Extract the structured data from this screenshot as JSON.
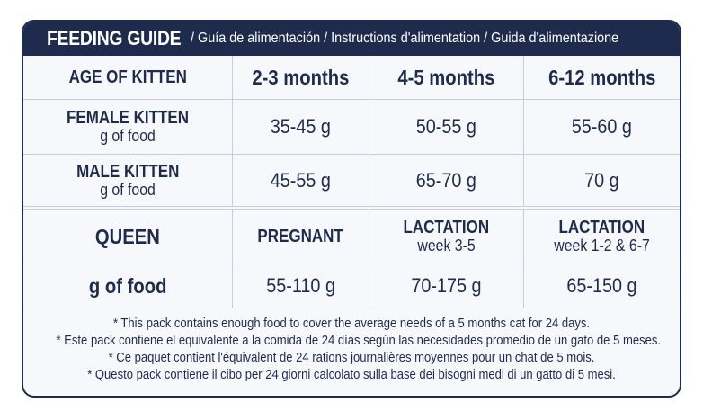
{
  "header": {
    "title": "FEEDING GUIDE",
    "subtitle": " / Guía de alimentación / Instructions d'alimentation / Guida d'alimentazione"
  },
  "kitten_table": {
    "header_row": [
      "AGE OF KITTEN",
      "2-3 months",
      "4-5 months",
      "6-12 months"
    ],
    "rows": [
      {
        "label": "FEMALE KITTEN",
        "sublabel": "g of food",
        "values": [
          "35-45 g",
          "50-55 g",
          "55-60 g"
        ]
      },
      {
        "label": "MALE KITTEN",
        "sublabel": "g of food",
        "values": [
          "45-55 g",
          "65-70 g",
          "70 g"
        ]
      }
    ]
  },
  "queen_table": {
    "label": "QUEEN",
    "stages": [
      {
        "title": "PREGNANT",
        "detail": ""
      },
      {
        "title": "LACTATION",
        "detail": "week 3-5"
      },
      {
        "title": "LACTATION",
        "detail": "week 1-2 & 6-7"
      }
    ],
    "food_row": {
      "label": "g of food",
      "values": [
        "55-110 g",
        "70-175 g",
        "65-150 g"
      ]
    }
  },
  "notes": [
    "* This pack contains enough food to cover the average needs of a 5 months cat for 24 days.",
    "* Este pack contiene el equivalente a la comida de 24 días según las necesidades promedio de un gato de 5 meses.",
    "* Ce paquet contient l'équivalent de 24 rations journalières moyennes pour un chat de 5 mois.",
    "* Questo pack contiene il cibo per 24 giorni calcolato sulla base dei bisogni medi di un gatto di 5 mesi."
  ],
  "colors": {
    "navy": "#1f2b4d",
    "background": "#f7f8fb",
    "grid": "#c7ccd9"
  }
}
